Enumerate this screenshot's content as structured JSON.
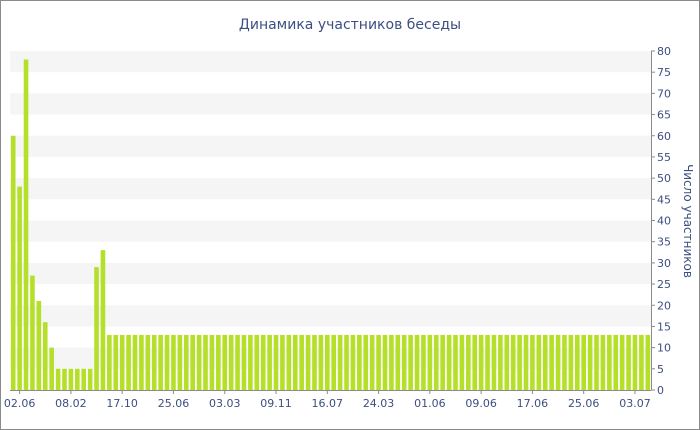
{
  "chart_data": {
    "type": "bar",
    "title": "Динамика участников беседы",
    "ylabel": "Число участников",
    "xlabel": "",
    "ylim": [
      0,
      80
    ],
    "yticks": [
      0,
      5,
      10,
      15,
      20,
      25,
      30,
      35,
      40,
      45,
      50,
      55,
      60,
      65,
      70,
      75,
      80
    ],
    "grid": "horizontal bands",
    "y_axis_position": "right",
    "bar_color": "#b5e02a",
    "band_color": "#f5f5f5",
    "text_color": "#3d4f82",
    "x_tick_labels": [
      {
        "label": "02.06",
        "index": 1
      },
      {
        "label": "08.02",
        "index": 9
      },
      {
        "label": "17.10",
        "index": 17
      },
      {
        "label": "25.06",
        "index": 25
      },
      {
        "label": "03.03",
        "index": 33
      },
      {
        "label": "09.11",
        "index": 41
      },
      {
        "label": "16.07",
        "index": 49
      },
      {
        "label": "24.03",
        "index": 57
      },
      {
        "label": "01.06",
        "index": 65
      },
      {
        "label": "09.06",
        "index": 73
      },
      {
        "label": "17.06",
        "index": 81
      },
      {
        "label": "25.06",
        "index": 89
      },
      {
        "label": "03.07",
        "index": 97
      }
    ],
    "values": [
      60,
      48,
      78,
      27,
      21,
      16,
      10,
      5,
      5,
      5,
      5,
      5,
      5,
      29,
      33,
      13,
      13,
      13,
      13,
      13,
      13,
      13,
      13,
      13,
      13,
      13,
      13,
      13,
      13,
      13,
      13,
      13,
      13,
      13,
      13,
      13,
      13,
      13,
      13,
      13,
      13,
      13,
      13,
      13,
      13,
      13,
      13,
      13,
      13,
      13,
      13,
      13,
      13,
      13,
      13,
      13,
      13,
      13,
      13,
      13,
      13,
      13,
      13,
      13,
      13,
      13,
      13,
      13,
      13,
      13,
      13,
      13,
      13,
      13,
      13,
      13,
      13,
      13,
      13,
      13,
      13,
      13,
      13,
      13,
      13,
      13,
      13,
      13,
      13,
      13,
      13,
      13,
      13,
      13,
      13,
      13,
      13,
      13,
      13,
      13
    ]
  }
}
